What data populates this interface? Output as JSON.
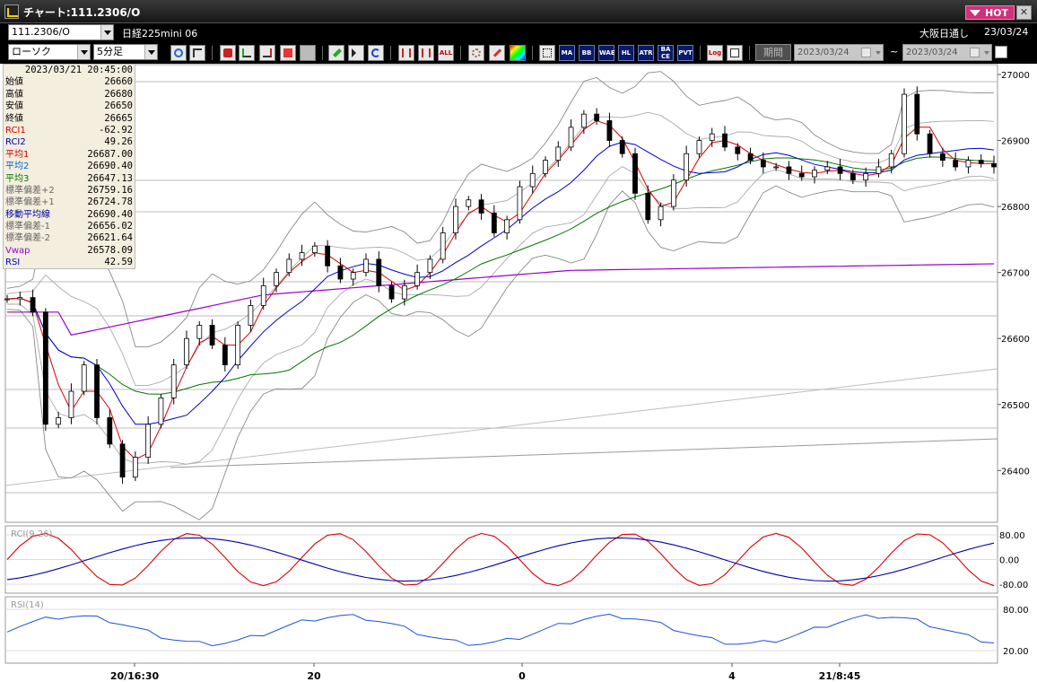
{
  "window": {
    "title": "チャート:111.2306/O",
    "hot_label": "HOT",
    "close_label": "✕"
  },
  "row1": {
    "symbol": "111.2306/O",
    "description": "日経225mini 06",
    "market": "大阪日通し",
    "date": "23/03/24"
  },
  "toolbar": {
    "chart_type": "ローソク",
    "interval": "5分足",
    "period_label": "期間",
    "start_date": "2023/03/24",
    "end_date": "2023/03/24",
    "separator": "~",
    "buttons": [
      "MA",
      "BB",
      "WAE",
      "HL",
      "ATR",
      "BA CE",
      "PVT",
      "Log"
    ]
  },
  "info_panel": {
    "datetime": "2023/03/21  20:45:00",
    "rows": [
      {
        "label": "始値",
        "value": "26660",
        "color": "#000000"
      },
      {
        "label": "高値",
        "value": "26680",
        "color": "#000000"
      },
      {
        "label": "安値",
        "value": "26650",
        "color": "#000000"
      },
      {
        "label": "終値",
        "value": "26665",
        "color": "#000000"
      },
      {
        "label": "RCI1",
        "value": "-62.92",
        "color": "#cc0000"
      },
      {
        "label": "RCI2",
        "value": "49.26",
        "color": "#0000aa"
      },
      {
        "label": "平均1",
        "value": "26687.00",
        "color": "#cc0000"
      },
      {
        "label": "平均2",
        "value": "26690.40",
        "color": "#0066cc"
      },
      {
        "label": "平均3",
        "value": "26647.13",
        "color": "#007700"
      },
      {
        "label": "標準偏差+2",
        "value": "26759.16",
        "color": "#666666"
      },
      {
        "label": "標準偏差+1",
        "value": "26724.78",
        "color": "#666666"
      },
      {
        "label": "移動平均線",
        "value": "26690.40",
        "color": "#0000aa"
      },
      {
        "label": "標準偏差-1",
        "value": "26656.02",
        "color": "#666666"
      },
      {
        "label": "標準偏差-2",
        "value": "26621.64",
        "color": "#666666"
      },
      {
        "label": "Vwap",
        "value": "26578.09",
        "color": "#9900cc"
      },
      {
        "label": "RSI",
        "value": "42.59",
        "color": "#0000cc"
      }
    ]
  },
  "chart_data": {
    "type": "candlestick",
    "price_axis": {
      "ticks": [
        "27000",
        "26900",
        "26800",
        "26700",
        "26600",
        "26500",
        "26400"
      ]
    },
    "rci_panel": {
      "label": "RCI(9,26)",
      "ticks": [
        "80.00",
        "0.00",
        "-80.00"
      ]
    },
    "rsi_panel": {
      "label": "RSI(14)",
      "ticks": [
        "80.00",
        "20.00"
      ]
    },
    "time_axis": {
      "ticks": [
        "20/16:30",
        "20",
        "0",
        "4",
        "21/8:45"
      ]
    },
    "approx_series": {
      "close": [
        26660,
        26662,
        26640,
        26470,
        26480,
        26520,
        26560,
        26480,
        26440,
        26390,
        26420,
        26470,
        26510,
        26560,
        26600,
        26620,
        26590,
        26560,
        26620,
        26650,
        26680,
        26700,
        26720,
        26730,
        26740,
        26710,
        26690,
        26700,
        26720,
        26680,
        26660,
        26680,
        26700,
        26720,
        26760,
        26800,
        26810,
        26790,
        26760,
        26780,
        26830,
        26850,
        26870,
        26890,
        26920,
        26940,
        26930,
        26900,
        26880,
        26820,
        26780,
        26800,
        26840,
        26880,
        26900,
        26910,
        26890,
        26880,
        26870,
        26860,
        26860,
        26850,
        26845,
        26855,
        26860,
        26850,
        26840,
        26850,
        26860,
        26880,
        26970,
        26910,
        26880,
        26870,
        26860,
        26870,
        26865,
        26860
      ]
    }
  }
}
